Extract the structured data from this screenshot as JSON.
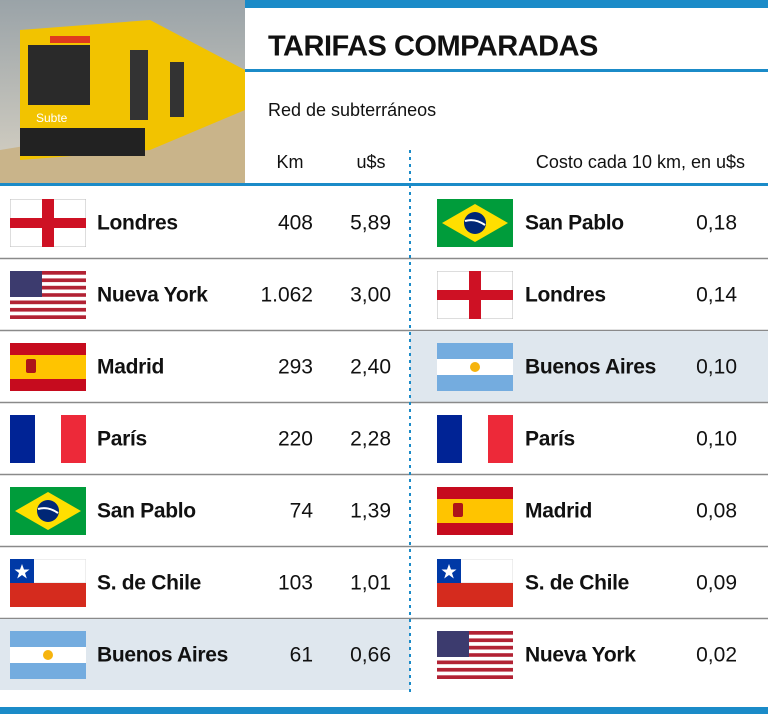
{
  "photo": {
    "label": "Subte"
  },
  "header": {
    "title": "TARIFAS COMPARADAS",
    "subtitle": "Red de subterráneos"
  },
  "left_table": {
    "columns": [
      "Km",
      "u$s"
    ],
    "rows": [
      [
        "Londres",
        "408",
        "5,89"
      ],
      [
        "Nueva York",
        "1.062",
        "3,00"
      ],
      [
        "Madrid",
        "293",
        "2,40"
      ],
      [
        "París",
        "220",
        "2,28"
      ],
      [
        "San Pablo",
        "74",
        "1,39"
      ],
      [
        "S. de Chile",
        "103",
        "1,01"
      ],
      [
        "Buenos Aires",
        "61",
        "0,66"
      ]
    ]
  },
  "right_table": {
    "heading": "Costo cada 10 km, en u$s",
    "rows": [
      [
        "San Pablo",
        "0,18"
      ],
      [
        "Londres",
        "0,14"
      ],
      [
        "Buenos Aires",
        "0,10"
      ],
      [
        "París",
        "0,10"
      ],
      [
        "Madrid",
        "0,08"
      ],
      [
        "S. de Chile",
        "0,09"
      ],
      [
        "Nueva York",
        "0,02"
      ]
    ]
  }
}
